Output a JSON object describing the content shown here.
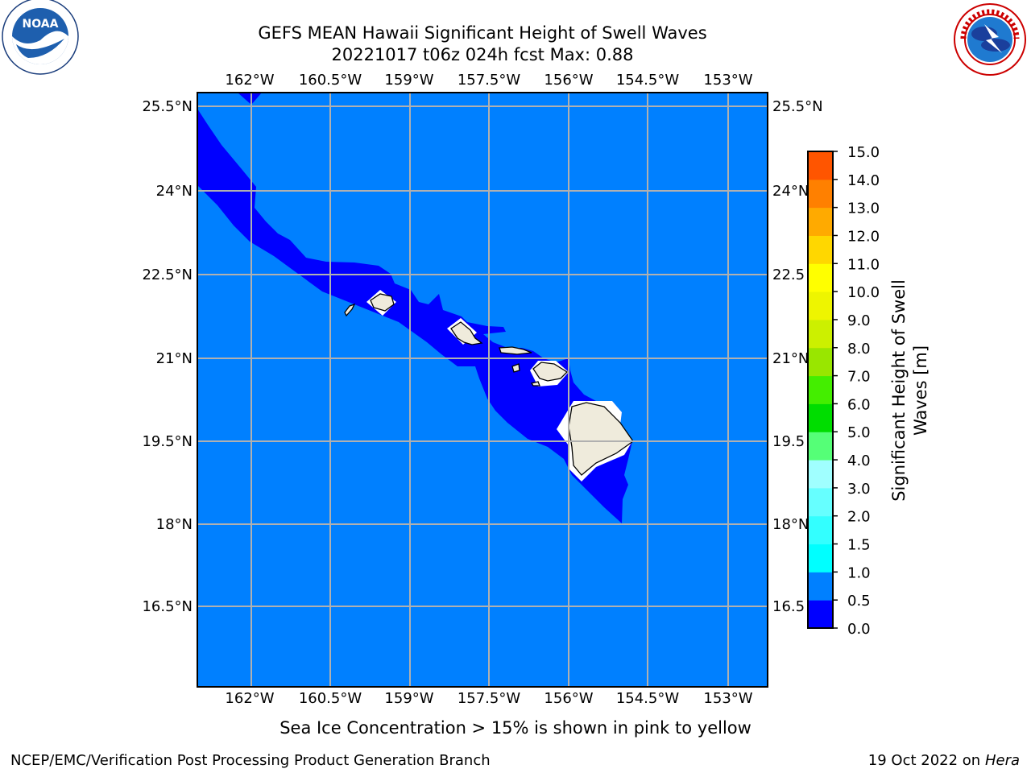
{
  "title": {
    "line1": "GEFS MEAN Hawaii Significant Height of Swell Waves",
    "line2": "20221017 t06z 024h fcst   Max: 0.88"
  },
  "logos": {
    "noaa": {
      "text": "NOAA",
      "ring_text": "NATIONAL OCEANIC AND ATMOSPHERIC ADMINISTRATION · U.S. DEPARTMENT OF COMMERCE"
    },
    "nws": {
      "ring_text": "NATIONAL WEATHER SERVICE"
    }
  },
  "map": {
    "lon_labels": [
      "162°W",
      "160.5°W",
      "159°W",
      "157.5°W",
      "156°W",
      "154.5°W",
      "153°W"
    ],
    "lat_labels": [
      "25.5°N",
      "24°N",
      "22.5°N",
      "21°N",
      "19.5°N",
      "18°N",
      "16.5°N"
    ],
    "lat_labels_right": [
      "25.5°N",
      "24°N",
      "22.5",
      "21°N",
      "19.5",
      "18°N",
      "16.5"
    ],
    "colors": {
      "ocean_0_5_1_0": "#0080ff",
      "ocean_0_0_5": "#0000ff",
      "land": "#efebdc",
      "gridline": "#b0b0b0"
    }
  },
  "colorbar": {
    "label_line1": "Significant Height of Swell",
    "label_line2": "Waves [m]",
    "ticks": [
      "0.0",
      "0.5",
      "1.0",
      "1.5",
      "2.0",
      "3.0",
      "4.0",
      "5.0",
      "6.0",
      "7.0",
      "8.0",
      "9.0",
      "10.0",
      "11.0",
      "12.0",
      "13.0",
      "14.0",
      "15.0"
    ],
    "colors": [
      "#0000ff",
      "#0080ff",
      "#00ffff",
      "#33ffff",
      "#66ffff",
      "#a0ffff",
      "#55ff77",
      "#00dd00",
      "#44ee00",
      "#99e600",
      "#ccf000",
      "#eef500",
      "#ffff00",
      "#ffd700",
      "#ffaa00",
      "#ff8000",
      "#ff5500",
      "#ff2b00",
      "#ff0000"
    ]
  },
  "caption": "Sea Ice Concentration > 15% is shown in pink to yellow",
  "footer": {
    "left": "NCEP/EMC/Verification Post Processing Product Generation Branch",
    "right_date": "19 Oct 2022 on ",
    "right_host": "Hera"
  }
}
